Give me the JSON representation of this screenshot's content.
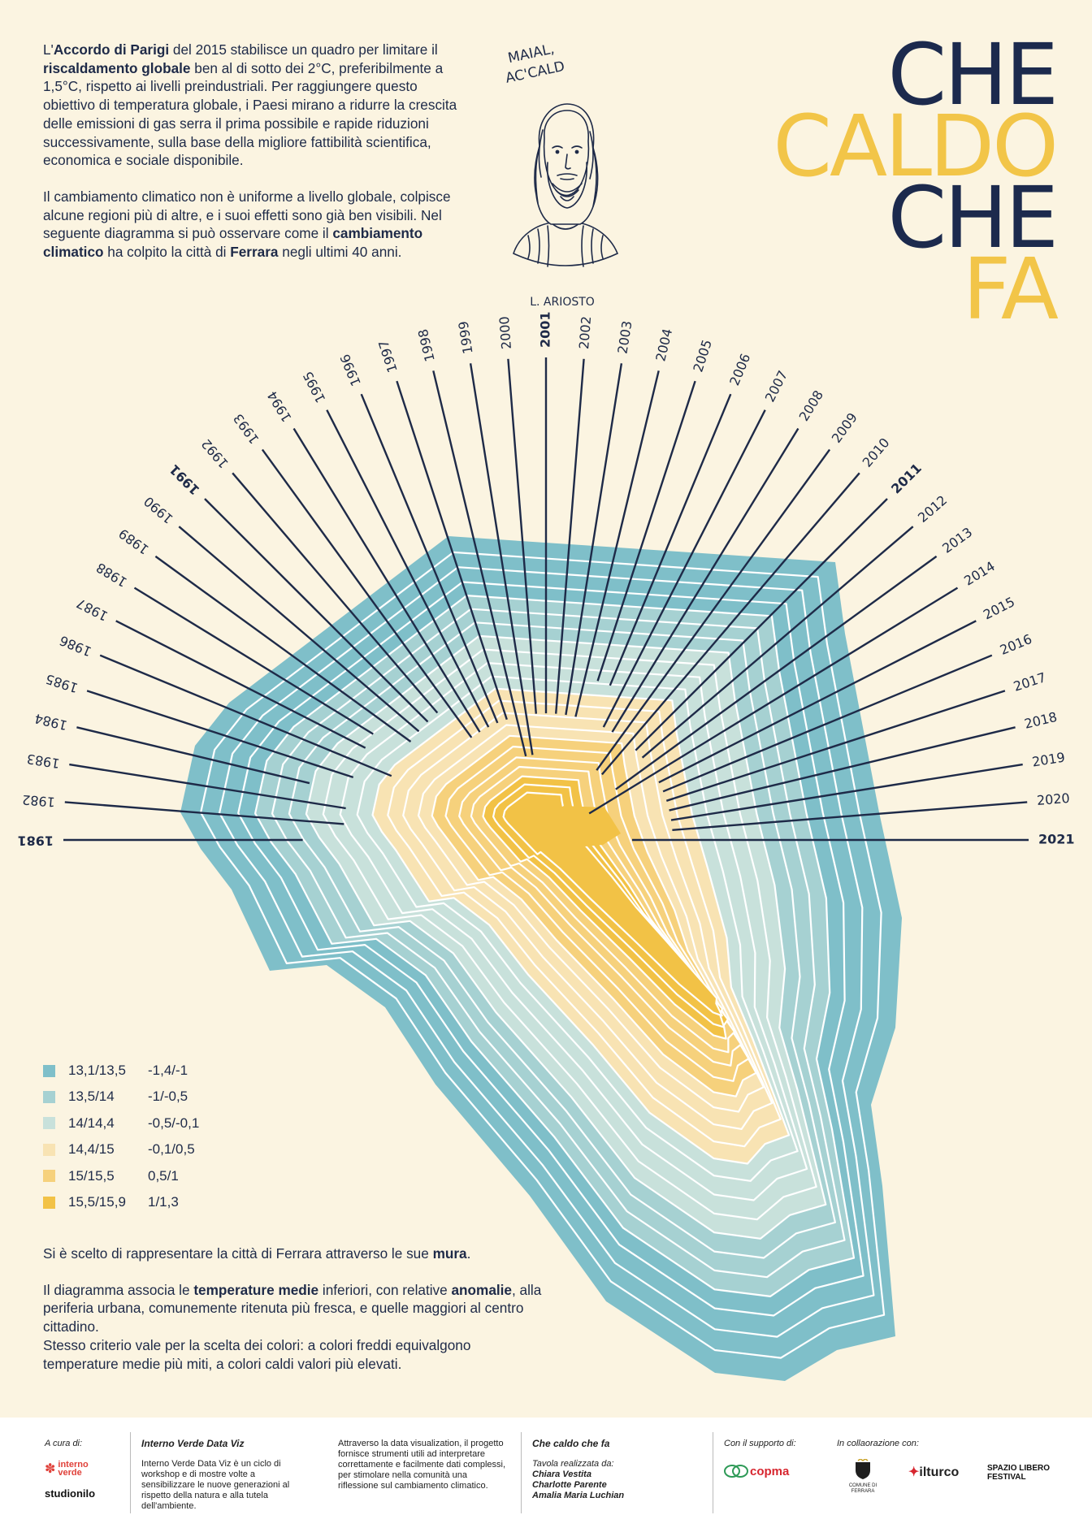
{
  "intro": {
    "p1": [
      {
        "t": "L'",
        "b": false
      },
      {
        "t": "Accordo di Parigi",
        "b": true
      },
      {
        "t": " del 2015 stabilisce un quadro per limitare il ",
        "b": false
      },
      {
        "t": "riscaldamento globale",
        "b": true
      },
      {
        "t": " ben al di sotto dei 2°C, preferibilmente a 1,5°C, rispetto ai livelli preindustriali. Per raggiungere questo obiettivo di temperatura globale, i Paesi mirano a ridurre la crescita delle emissioni di gas serra il prima possibile e rapide riduzioni successivamente, sulla base della migliore fattibilità scientifica, economica e sociale disponibile.",
        "b": false
      }
    ],
    "p2": [
      {
        "t": "Il cambiamento climatico non è uniforme a livello globale, colpisce alcune regioni più di altre, e i suoi effetti sono già ben visibili. Nel seguente diagramma si può osservare come il ",
        "b": false
      },
      {
        "t": "cambiamento climatico",
        "b": true
      },
      {
        "t": " ha colpito la città di ",
        "b": false
      },
      {
        "t": "Ferrara",
        "b": true
      },
      {
        "t": " negli ultimi 40 anni.",
        "b": false
      }
    ]
  },
  "portrait": {
    "speech": [
      "MAIAL,",
      "AC'CALD"
    ],
    "caption": "L. ARIOSTO"
  },
  "title": [
    {
      "text": "CHE",
      "color": "#1c2a4d"
    },
    {
      "text": "CALDO",
      "color": "#f2c548"
    },
    {
      "text": "CHE",
      "color": "#1c2a4d"
    },
    {
      "text": "FA",
      "color": "#f2c548"
    }
  ],
  "chart_data": {
    "type": "radial contour diagram",
    "years": [
      1981,
      1982,
      1983,
      1984,
      1985,
      1986,
      1987,
      1988,
      1989,
      1990,
      1991,
      1992,
      1993,
      1994,
      1995,
      1996,
      1997,
      1998,
      1999,
      2000,
      2001,
      2002,
      2003,
      2004,
      2005,
      2006,
      2007,
      2008,
      2009,
      2010,
      2011,
      2012,
      2013,
      2014,
      2015,
      2016,
      2017,
      2018,
      2019,
      2020,
      2021
    ],
    "bold_years": [
      1981,
      1991,
      2001,
      2011,
      2021
    ],
    "year_class": [
      0,
      1,
      1,
      0,
      1,
      2,
      1,
      1,
      2,
      2,
      2,
      2,
      3,
      3,
      3,
      3,
      3,
      4,
      4,
      3,
      3,
      3,
      3,
      3,
      2,
      2,
      3,
      3,
      4,
      4,
      3,
      3,
      4,
      5,
      3,
      3,
      3,
      3,
      3,
      3,
      4
    ],
    "classes": [
      {
        "temp": "13,1/13,5",
        "anomaly": "-1,4/-1",
        "color": "#7fbfc9"
      },
      {
        "temp": "13,5/14",
        "anomaly": "-1/-0,5",
        "color": "#a6d1d2"
      },
      {
        "temp": "14/14,4",
        "anomaly": "-0,5/-0,1",
        "color": "#c8e1db"
      },
      {
        "temp": "14,4/15",
        "anomaly": "-0,1/0,5",
        "color": "#f8e3b3"
      },
      {
        "temp": "15/15,5",
        "anomaly": "0,5/1",
        "color": "#f6d17c"
      },
      {
        "temp": "15,5/15,9",
        "anomaly": "1/1,3",
        "color": "#f2c246"
      }
    ]
  },
  "bottom": {
    "p1": [
      {
        "t": "Si è scelto di rappresentare la città di Ferrara attraverso le sue ",
        "b": false
      },
      {
        "t": "mura",
        "b": true
      },
      {
        "t": ".",
        "b": false
      }
    ],
    "p2": [
      {
        "t": "Il diagramma associa le ",
        "b": false
      },
      {
        "t": "temperature medie",
        "b": true
      },
      {
        "t": " inferiori, con relative ",
        "b": false
      },
      {
        "t": "anomalie",
        "b": true
      },
      {
        "t": ", alla periferia urbana, comunemente ritenuta più fresca, e quelle maggiori al centro cittadino.",
        "b": false
      }
    ],
    "p3": [
      {
        "t": "Stesso criterio vale per la scelta dei colori: a colori freddi equivalgono temperature medie più miti, a colori caldi valori più elevati.",
        "b": false
      }
    ]
  },
  "footer": {
    "curated_label": "A cura di:",
    "logo_interno": [
      "interno",
      "verde"
    ],
    "logo_studio": "studionilo",
    "ivdv_title": "Interno Verde Data Viz",
    "ivdv_text": "Interno Verde Data Viz è un ciclo di workshop e di mostre volte a sensibilizzare le nuove generazioni al rispetto della natura e alla tutela dell'ambiente.",
    "project_text": "Attraverso la data visualization, il progetto fornisce strumenti utili ad interpretare correttamente e facilmente dati complessi, per stimolare nella comunità una riflessione sul cambiamento climatico.",
    "credit_title": "Che caldo che fa",
    "credit_sub": "Tavola realizzata da:",
    "authors": [
      "Chiara Vestita",
      "Charlotte Parente",
      "Amalia Maria Luchian"
    ],
    "support_label": "Con il supporto di:",
    "logo_copma": "copma",
    "collab_label": "In collaorazione con:",
    "logo_comune": "COMUNE DI FERRARA",
    "logo_ilturco": "ilturco",
    "logo_spazio": [
      "SPAZIO LIBERO",
      "FESTIVAL"
    ]
  }
}
